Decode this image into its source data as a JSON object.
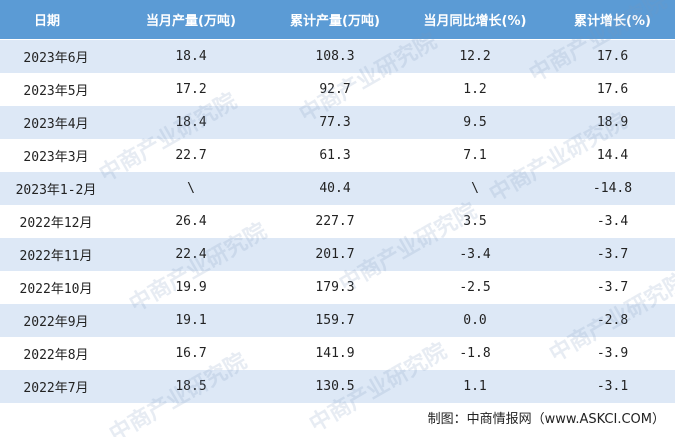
{
  "table": {
    "header": [
      "日期",
      "当月产量(万吨)",
      "累计产量(万吨)",
      "当月同比增长(%)",
      "累计增长(%)"
    ],
    "rows": [
      [
        "2023年6月",
        "18.4",
        "108.3",
        "12.2",
        "17.6"
      ],
      [
        "2023年5月",
        "17.2",
        "92.7",
        "1.2",
        "17.6"
      ],
      [
        "2023年4月",
        "18.4",
        "77.3",
        "9.5",
        "18.9"
      ],
      [
        "2023年3月",
        "22.7",
        "61.3",
        "7.1",
        "14.4"
      ],
      [
        "2023年1-2月",
        "\\",
        "40.4",
        "\\",
        "-14.8"
      ],
      [
        "2022年12月",
        "26.4",
        "227.7",
        "3.5",
        "-3.4"
      ],
      [
        "2022年11月",
        "22.4",
        "201.7",
        "-3.4",
        "-3.7"
      ],
      [
        "2022年10月",
        "19.9",
        "179.3",
        "-2.5",
        "-3.7"
      ],
      [
        "2022年9月",
        "19.1",
        "159.7",
        "0.0",
        "-2.8"
      ],
      [
        "2022年8月",
        "16.7",
        "141.9",
        "-1.8",
        "-3.9"
      ],
      [
        "2022年7月",
        "18.5",
        "130.5",
        "1.1",
        "-3.1"
      ]
    ]
  },
  "watermark": "中商产业研究院",
  "footer": "制图：中商情报网（www.ASKCI.COM）"
}
